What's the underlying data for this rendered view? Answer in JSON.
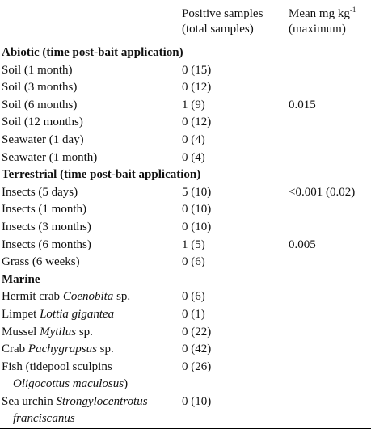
{
  "header": {
    "positive": [
      "Positive samples",
      "(total samples)"
    ],
    "mean": {
      "text": "Mean mg kg",
      "sup": "-1",
      "line2": "(maximum)"
    }
  },
  "sections": [
    {
      "title": "Abiotic (time post-bait application)",
      "rows": [
        {
          "label": [
            [
              "Soil (1 month)"
            ]
          ],
          "positive": "0 (15)"
        },
        {
          "label": [
            [
              "Soil (3 months)"
            ]
          ],
          "positive": "0 (12)"
        },
        {
          "label": [
            [
              "Soil (6 months)"
            ]
          ],
          "positive": "1 (9)",
          "mean": "0.015"
        },
        {
          "label": [
            [
              "Soil (12 months)"
            ]
          ],
          "positive": "0 (12)"
        },
        {
          "label": [
            [
              "Seawater (1 day)"
            ]
          ],
          "positive": "0 (4)"
        },
        {
          "label": [
            [
              "Seawater (1 month)"
            ]
          ],
          "positive": "0 (4)"
        }
      ]
    },
    {
      "title": "Terrestrial (time post-bait application)",
      "rows": [
        {
          "label": [
            [
              "Insects (5 days)"
            ]
          ],
          "positive": "5 (10)",
          "mean": "<0.001 (0.02)"
        },
        {
          "label": [
            [
              "Insects (1 month)"
            ]
          ],
          "positive": "0 (10)"
        },
        {
          "label": [
            [
              "Insects (3 months)"
            ]
          ],
          "positive": "0 (10)"
        },
        {
          "label": [
            [
              "Insects (6 months)"
            ]
          ],
          "positive": "1 (5)",
          "mean": "0.005"
        },
        {
          "label": [
            [
              "Grass (6 weeks)"
            ]
          ],
          "positive": "0 (6)"
        }
      ]
    },
    {
      "title": "Marine",
      "rows": [
        {
          "label": [
            [
              "Hermit crab ",
              {
                "italic": "Coenobita"
              },
              " sp."
            ]
          ],
          "positive": "0 (6)"
        },
        {
          "label": [
            [
              "Limpet ",
              {
                "italic": "Lottia gigantea"
              }
            ]
          ],
          "positive": "0 (1)"
        },
        {
          "label": [
            [
              "Mussel ",
              {
                "italic": "Mytilus"
              },
              " sp."
            ]
          ],
          "positive": "0 (22)"
        },
        {
          "label": [
            [
              "Crab ",
              {
                "italic": "Pachygrapsus"
              },
              " sp."
            ]
          ],
          "positive": "0 (42)"
        },
        {
          "label": [
            [
              "Fish (tidepool sculpins"
            ],
            [
              {
                "italic": "Oligocottus maculosus"
              },
              ")"
            ]
          ],
          "positive": "0 (26)"
        },
        {
          "label": [
            [
              "Sea urchin ",
              {
                "italic": "Strongylocentrotus"
              }
            ],
            [
              {
                "italic": "franciscanus"
              }
            ]
          ],
          "positive": "0 (10)"
        }
      ]
    }
  ]
}
